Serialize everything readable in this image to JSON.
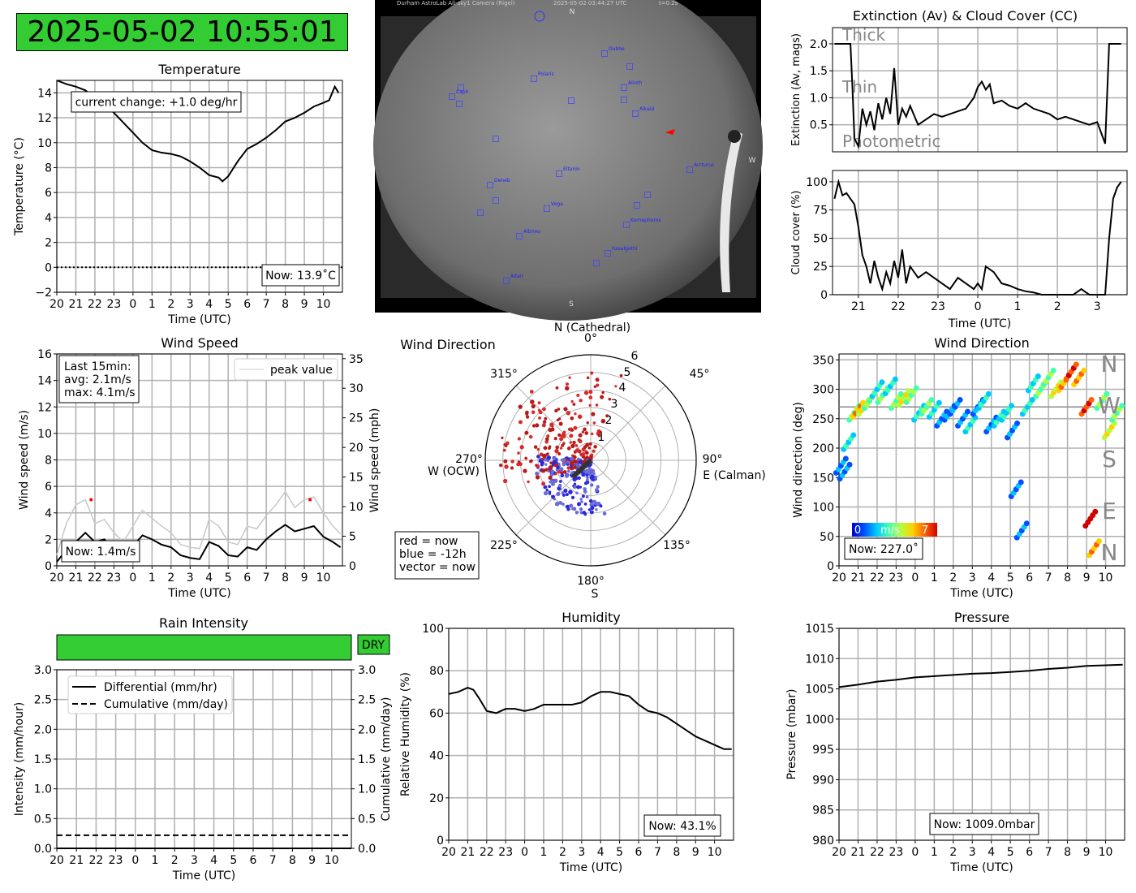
{
  "clock": "2025-05-02 10:55:01",
  "hours_ticks": [
    "20",
    "21",
    "22",
    "23",
    "0",
    "1",
    "2",
    "3",
    "4",
    "5",
    "6",
    "7",
    "8",
    "9",
    "10"
  ],
  "time_label": "Time (UTC)",
  "temperature": {
    "title": "Temperature",
    "ylabel": "Temperature (°C)",
    "yticks": [
      "−2",
      "0",
      "2",
      "4",
      "6",
      "8",
      "10",
      "12",
      "14"
    ],
    "change_label": "current change: +1.0 deg/hr",
    "now_label": "Now: 13.9˚C",
    "chart_data": {
      "type": "line",
      "x_hours": [
        20,
        20.5,
        21,
        21.5,
        22,
        22.5,
        23,
        23.5,
        0,
        0.5,
        1,
        1.5,
        2,
        2.5,
        3,
        3.5,
        4,
        4.5,
        4.7,
        5,
        5.5,
        6,
        6.5,
        7,
        7.5,
        8,
        8.5,
        9,
        9.5,
        10,
        10.3,
        10.6,
        10.8
      ],
      "y": [
        15,
        14.7,
        14.5,
        14.2,
        13.6,
        13.1,
        12.4,
        11.6,
        10.8,
        10,
        9.4,
        9.2,
        9.1,
        8.9,
        8.5,
        8,
        7.4,
        7.2,
        6.9,
        7.3,
        8.5,
        9.5,
        9.9,
        10.4,
        11,
        11.7,
        12,
        12.4,
        12.9,
        13.2,
        13.4,
        14.5,
        14
      ],
      "ylim": [
        -2,
        15
      ],
      "xlabel": "Time (UTC)",
      "ylabel": "Temperature (°C)"
    }
  },
  "allsky": {
    "header_left": "Durham AstroLab All-sky1 Camera (Rigel)",
    "header_date": "2025-05-02 03:44:27 UTC",
    "header_exp": "t=0.2s",
    "N": "N",
    "S": "S",
    "W": "W",
    "stars": [
      {
        "name": "Dubhe",
        "x": 745,
        "y": 66
      },
      {
        "name": "",
        "x": 776,
        "y": 82
      },
      {
        "name": "Polaris",
        "x": 658,
        "y": 97
      },
      {
        "name": "Alioth",
        "x": 769,
        "y": 108
      },
      {
        "name": "",
        "x": 568,
        "y": 108
      },
      {
        "name": "Caph",
        "x": 557,
        "y": 119
      },
      {
        "name": "",
        "x": 566,
        "y": 128
      },
      {
        "name": "",
        "x": 704,
        "y": 124
      },
      {
        "name": "",
        "x": 769,
        "y": 123
      },
      {
        "name": "Alkaid",
        "x": 783,
        "y": 140
      },
      {
        "name": "",
        "x": 611,
        "y": 171
      },
      {
        "name": "Arcturus",
        "x": 850,
        "y": 209
      },
      {
        "name": "Eltanin",
        "x": 689,
        "y": 214
      },
      {
        "name": "Deneb",
        "x": 604,
        "y": 228
      },
      {
        "name": "",
        "x": 798,
        "y": 240
      },
      {
        "name": "",
        "x": 611,
        "y": 247
      },
      {
        "name": "",
        "x": 785,
        "y": 253
      },
      {
        "name": "Vega",
        "x": 674,
        "y": 257
      },
      {
        "name": "",
        "x": 592,
        "y": 262
      },
      {
        "name": "Kornephoros",
        "x": 772,
        "y": 277
      },
      {
        "name": "Albireo",
        "x": 640,
        "y": 291
      },
      {
        "name": "Rasalgethi",
        "x": 749,
        "y": 312
      },
      {
        "name": "",
        "x": 735,
        "y": 324
      },
      {
        "name": "Altair",
        "x": 624,
        "y": 346
      }
    ]
  },
  "extinction": {
    "title": "Extinction (Av) & Cloud Cover (CC)",
    "ylabel": "Extinction (Av, mags)",
    "bands": [
      "Thick",
      "Thin",
      "Photometric"
    ],
    "yticks": [
      "0.5",
      "1.0",
      "1.5",
      "2.0"
    ],
    "chart_data": {
      "type": "line",
      "x_hours": [
        20.4,
        20.8,
        20.85,
        20.9,
        21.0,
        21.1,
        21.2,
        21.3,
        21.4,
        21.5,
        21.6,
        21.7,
        21.8,
        21.9,
        22.0,
        22.1,
        22.2,
        22.3,
        22.5,
        22.7,
        22.9,
        23.1,
        23.3,
        23.5,
        23.7,
        23.9,
        0.0,
        0.1,
        0.2,
        0.3,
        0.4,
        0.6,
        0.8,
        1.0,
        1.2,
        1.4,
        1.6,
        1.8,
        2.0,
        2.2,
        2.4,
        2.6,
        2.8,
        3.0,
        3.2,
        3.3,
        3.4,
        3.6
      ],
      "y": [
        2.0,
        2.0,
        1.2,
        0.25,
        0.1,
        0.8,
        0.5,
        0.75,
        0.4,
        0.9,
        0.6,
        1.0,
        0.7,
        1.55,
        0.5,
        0.8,
        0.65,
        0.85,
        0.5,
        0.6,
        0.7,
        0.65,
        0.7,
        0.75,
        0.8,
        1.0,
        1.2,
        1.3,
        1.15,
        1.25,
        0.9,
        0.95,
        0.85,
        0.8,
        0.9,
        0.8,
        0.75,
        0.7,
        0.6,
        0.65,
        0.6,
        0.55,
        0.5,
        0.55,
        0.15,
        2.0,
        2.0,
        2.0
      ],
      "ylim": [
        0,
        2.3
      ]
    }
  },
  "cloud": {
    "ylabel": "Cloud cover (%)",
    "yticks": [
      "0",
      "25",
      "50",
      "75",
      "100"
    ],
    "xticks": [
      "21",
      "22",
      "23",
      "0",
      "1",
      "2",
      "3"
    ],
    "chart_data": {
      "type": "line",
      "x_hours": [
        20.4,
        20.5,
        20.6,
        20.7,
        20.8,
        20.9,
        21.0,
        21.1,
        21.2,
        21.3,
        21.4,
        21.5,
        21.6,
        21.7,
        21.8,
        21.9,
        22.0,
        22.1,
        22.2,
        22.3,
        22.5,
        22.7,
        22.9,
        23.1,
        23.3,
        23.5,
        23.7,
        23.9,
        0.0,
        0.1,
        0.2,
        0.4,
        0.6,
        0.8,
        1.0,
        1.2,
        1.4,
        1.6,
        1.8,
        2.0,
        2.2,
        2.4,
        2.6,
        2.8,
        3.0,
        3.2,
        3.3,
        3.4,
        3.5,
        3.6
      ],
      "y": [
        85,
        100,
        88,
        90,
        85,
        80,
        60,
        35,
        25,
        10,
        30,
        15,
        5,
        20,
        10,
        30,
        15,
        40,
        10,
        25,
        15,
        20,
        15,
        10,
        5,
        15,
        10,
        5,
        10,
        5,
        25,
        20,
        10,
        8,
        5,
        3,
        2,
        0,
        0,
        0,
        0,
        0,
        5,
        0,
        0,
        0,
        50,
        85,
        95,
        100
      ],
      "ylim": [
        0,
        110
      ]
    }
  },
  "wind_speed": {
    "title": "Wind Speed",
    "ylabel": "Wind speed (m/s)",
    "ylabel2": "Wind speed (mph)",
    "yticks": [
      "0",
      "2",
      "4",
      "6",
      "8",
      "10",
      "12",
      "14",
      "16"
    ],
    "yticks2": [
      "0",
      "5",
      "10",
      "15",
      "20",
      "25",
      "30",
      "35"
    ],
    "stats_line1": "Last 15min:",
    "stats_line2": "avg: 2.1m/s",
    "stats_line3": "max: 4.1m/s",
    "legend": "peak value",
    "now_label": "Now: 1.4m/s",
    "chart_data": {
      "type": "line",
      "x_hours": [
        20,
        20.5,
        21,
        21.5,
        22,
        22.5,
        23,
        23.5,
        0,
        0.5,
        1,
        1.5,
        2,
        2.5,
        3,
        3.5,
        4,
        4.5,
        5,
        5.5,
        6,
        6.5,
        7,
        7.5,
        8,
        8.5,
        9,
        9.5,
        10,
        10.5,
        10.9
      ],
      "y": [
        0.3,
        1.2,
        1.8,
        2.5,
        1.8,
        2.0,
        1.2,
        0.8,
        1.5,
        2.3,
        2.0,
        1.6,
        1.4,
        0.8,
        0.6,
        0.5,
        1.8,
        1.5,
        0.8,
        0.7,
        1.4,
        1.2,
        2.0,
        2.6,
        3.1,
        2.6,
        2.8,
        3.0,
        2.2,
        1.8,
        1.4
      ],
      "peak": [
        0.8,
        3.2,
        4.6,
        5.0,
        3.2,
        3.5,
        2.5,
        1.8,
        3.0,
        4.2,
        3.6,
        3.0,
        2.5,
        1.6,
        1.4,
        1.3,
        3.5,
        3.0,
        1.8,
        1.6,
        3.0,
        2.8,
        3.8,
        4.6,
        5.6,
        4.4,
        5.0,
        5.2,
        4.0,
        3.0,
        2.4
      ],
      "ylim": [
        0,
        16
      ]
    }
  },
  "polar": {
    "title": "Wind Direction",
    "N": "N (Cathedral)",
    "zero": "0°",
    "E": "90°",
    "E2": "E (Calman)",
    "S": "180°",
    "S2": "S",
    "W": "270°",
    "W2": "W (OCW)",
    "a45": "45°",
    "a135": "135°",
    "a225": "225°",
    "a315": "315°",
    "radii": [
      "1",
      "2",
      "3",
      "4",
      "5",
      "6"
    ],
    "legend1": "red = now",
    "legend2": "blue = -12h",
    "legend3": "vector = now",
    "vector": {
      "dir_deg": 227,
      "speed": 1.4
    }
  },
  "wind_dir": {
    "title": "Wind Direction",
    "ylabel": "Wind direction (deg)",
    "yticks": [
      "0",
      "50",
      "100",
      "150",
      "200",
      "250",
      "300",
      "350"
    ],
    "compass": [
      "N",
      "W",
      "S",
      "E",
      "N"
    ],
    "cbar0": "0",
    "cbarmid": "m/s",
    "cbar7": "7",
    "now_label": "Now: 227.0˚",
    "chart_data": {
      "type": "scatter",
      "x_hours": [
        20.1,
        20.3,
        20.5,
        20.8,
        21,
        21.3,
        21.6,
        22,
        22.3,
        22.7,
        23,
        23.4,
        23.8,
        0.2,
        0.6,
        1,
        1.4,
        1.8,
        2.1,
        2.5,
        2.9,
        3.3,
        3.6,
        4,
        4.4,
        4.8,
        5.1,
        5.3,
        5.6,
        5.9,
        6.2,
        6.6,
        7,
        7.4,
        7.8,
        8.2,
        8.6,
        9,
        9.2,
        9.4,
        9.8,
        10.2,
        10.6
      ],
      "y": [
        170,
        160,
        210,
        260,
        265,
        270,
        280,
        300,
        290,
        305,
        280,
        285,
        290,
        260,
        270,
        265,
        250,
        260,
        270,
        250,
        240,
        270,
        280,
        240,
        250,
        260,
        230,
        130,
        60,
        270,
        310,
        300,
        320,
        300,
        310,
        330,
        320,
        270,
        80,
        30,
        280,
        230,
        260
      ],
      "speed": [
        1,
        1,
        2,
        3,
        5,
        4,
        3,
        2,
        3,
        2,
        3,
        4,
        3,
        2,
        3,
        2,
        1,
        1,
        1,
        1,
        2,
        1,
        2,
        1,
        2,
        2,
        1,
        1,
        1,
        2,
        2,
        3,
        3,
        4,
        5,
        6,
        5,
        6,
        7,
        5,
        3,
        4,
        3
      ],
      "ylim": [
        0,
        360
      ]
    }
  },
  "rain": {
    "title": "Rain Intensity",
    "status": "DRY",
    "ylabel": "Intensity (mm/hour)",
    "ylabel2": "Cumulative (mm/day)",
    "yticks": [
      "0.0",
      "0.5",
      "1.0",
      "1.5",
      "2.0",
      "2.5",
      "3.0"
    ],
    "legend1": "Differential (mm/hr)",
    "legend2": "Cumulative (mm/day)",
    "chart_data": {
      "type": "line",
      "differential": 0.0,
      "cumulative": 0.22,
      "ylim": [
        0,
        3
      ]
    }
  },
  "humidity": {
    "title": "Humidity",
    "ylabel": "Relative Humidity (%)",
    "yticks": [
      "0",
      "20",
      "40",
      "60",
      "80",
      "100"
    ],
    "now_label": "Now: 43.1%",
    "chart_data": {
      "type": "line",
      "x_hours": [
        20,
        20.5,
        21,
        21.3,
        21.6,
        22,
        22.5,
        23,
        23.5,
        0,
        0.5,
        1,
        1.5,
        2,
        2.5,
        3,
        3.5,
        4,
        4.5,
        5,
        5.5,
        6,
        6.5,
        7,
        7.5,
        8,
        8.5,
        9,
        9.5,
        10,
        10.5,
        10.9
      ],
      "y": [
        69,
        70,
        72,
        71,
        67,
        61,
        60,
        62,
        62,
        61,
        62,
        64,
        64,
        64,
        64,
        65,
        68,
        70,
        70,
        69,
        68,
        64,
        61,
        60,
        58,
        55,
        52,
        49,
        47,
        45,
        43,
        43
      ],
      "ylim": [
        0,
        100
      ]
    }
  },
  "pressure": {
    "title": "Pressure",
    "ylabel": "Pressure (mbar)",
    "yticks": [
      "980",
      "985",
      "990",
      "995",
      "1000",
      "1005",
      "1010",
      "1015"
    ],
    "now_label": "Now: 1009.0mbar",
    "chart_data": {
      "type": "line",
      "x_hours": [
        20,
        21,
        22,
        23,
        0,
        1,
        2,
        3,
        4,
        5,
        6,
        7,
        8,
        9,
        10,
        10.9
      ],
      "y": [
        1005.3,
        1005.7,
        1006.2,
        1006.5,
        1006.9,
        1007.1,
        1007.3,
        1007.5,
        1007.6,
        1007.8,
        1008.0,
        1008.3,
        1008.5,
        1008.8,
        1008.9,
        1009.0
      ],
      "ylim": [
        980,
        1015
      ]
    }
  }
}
